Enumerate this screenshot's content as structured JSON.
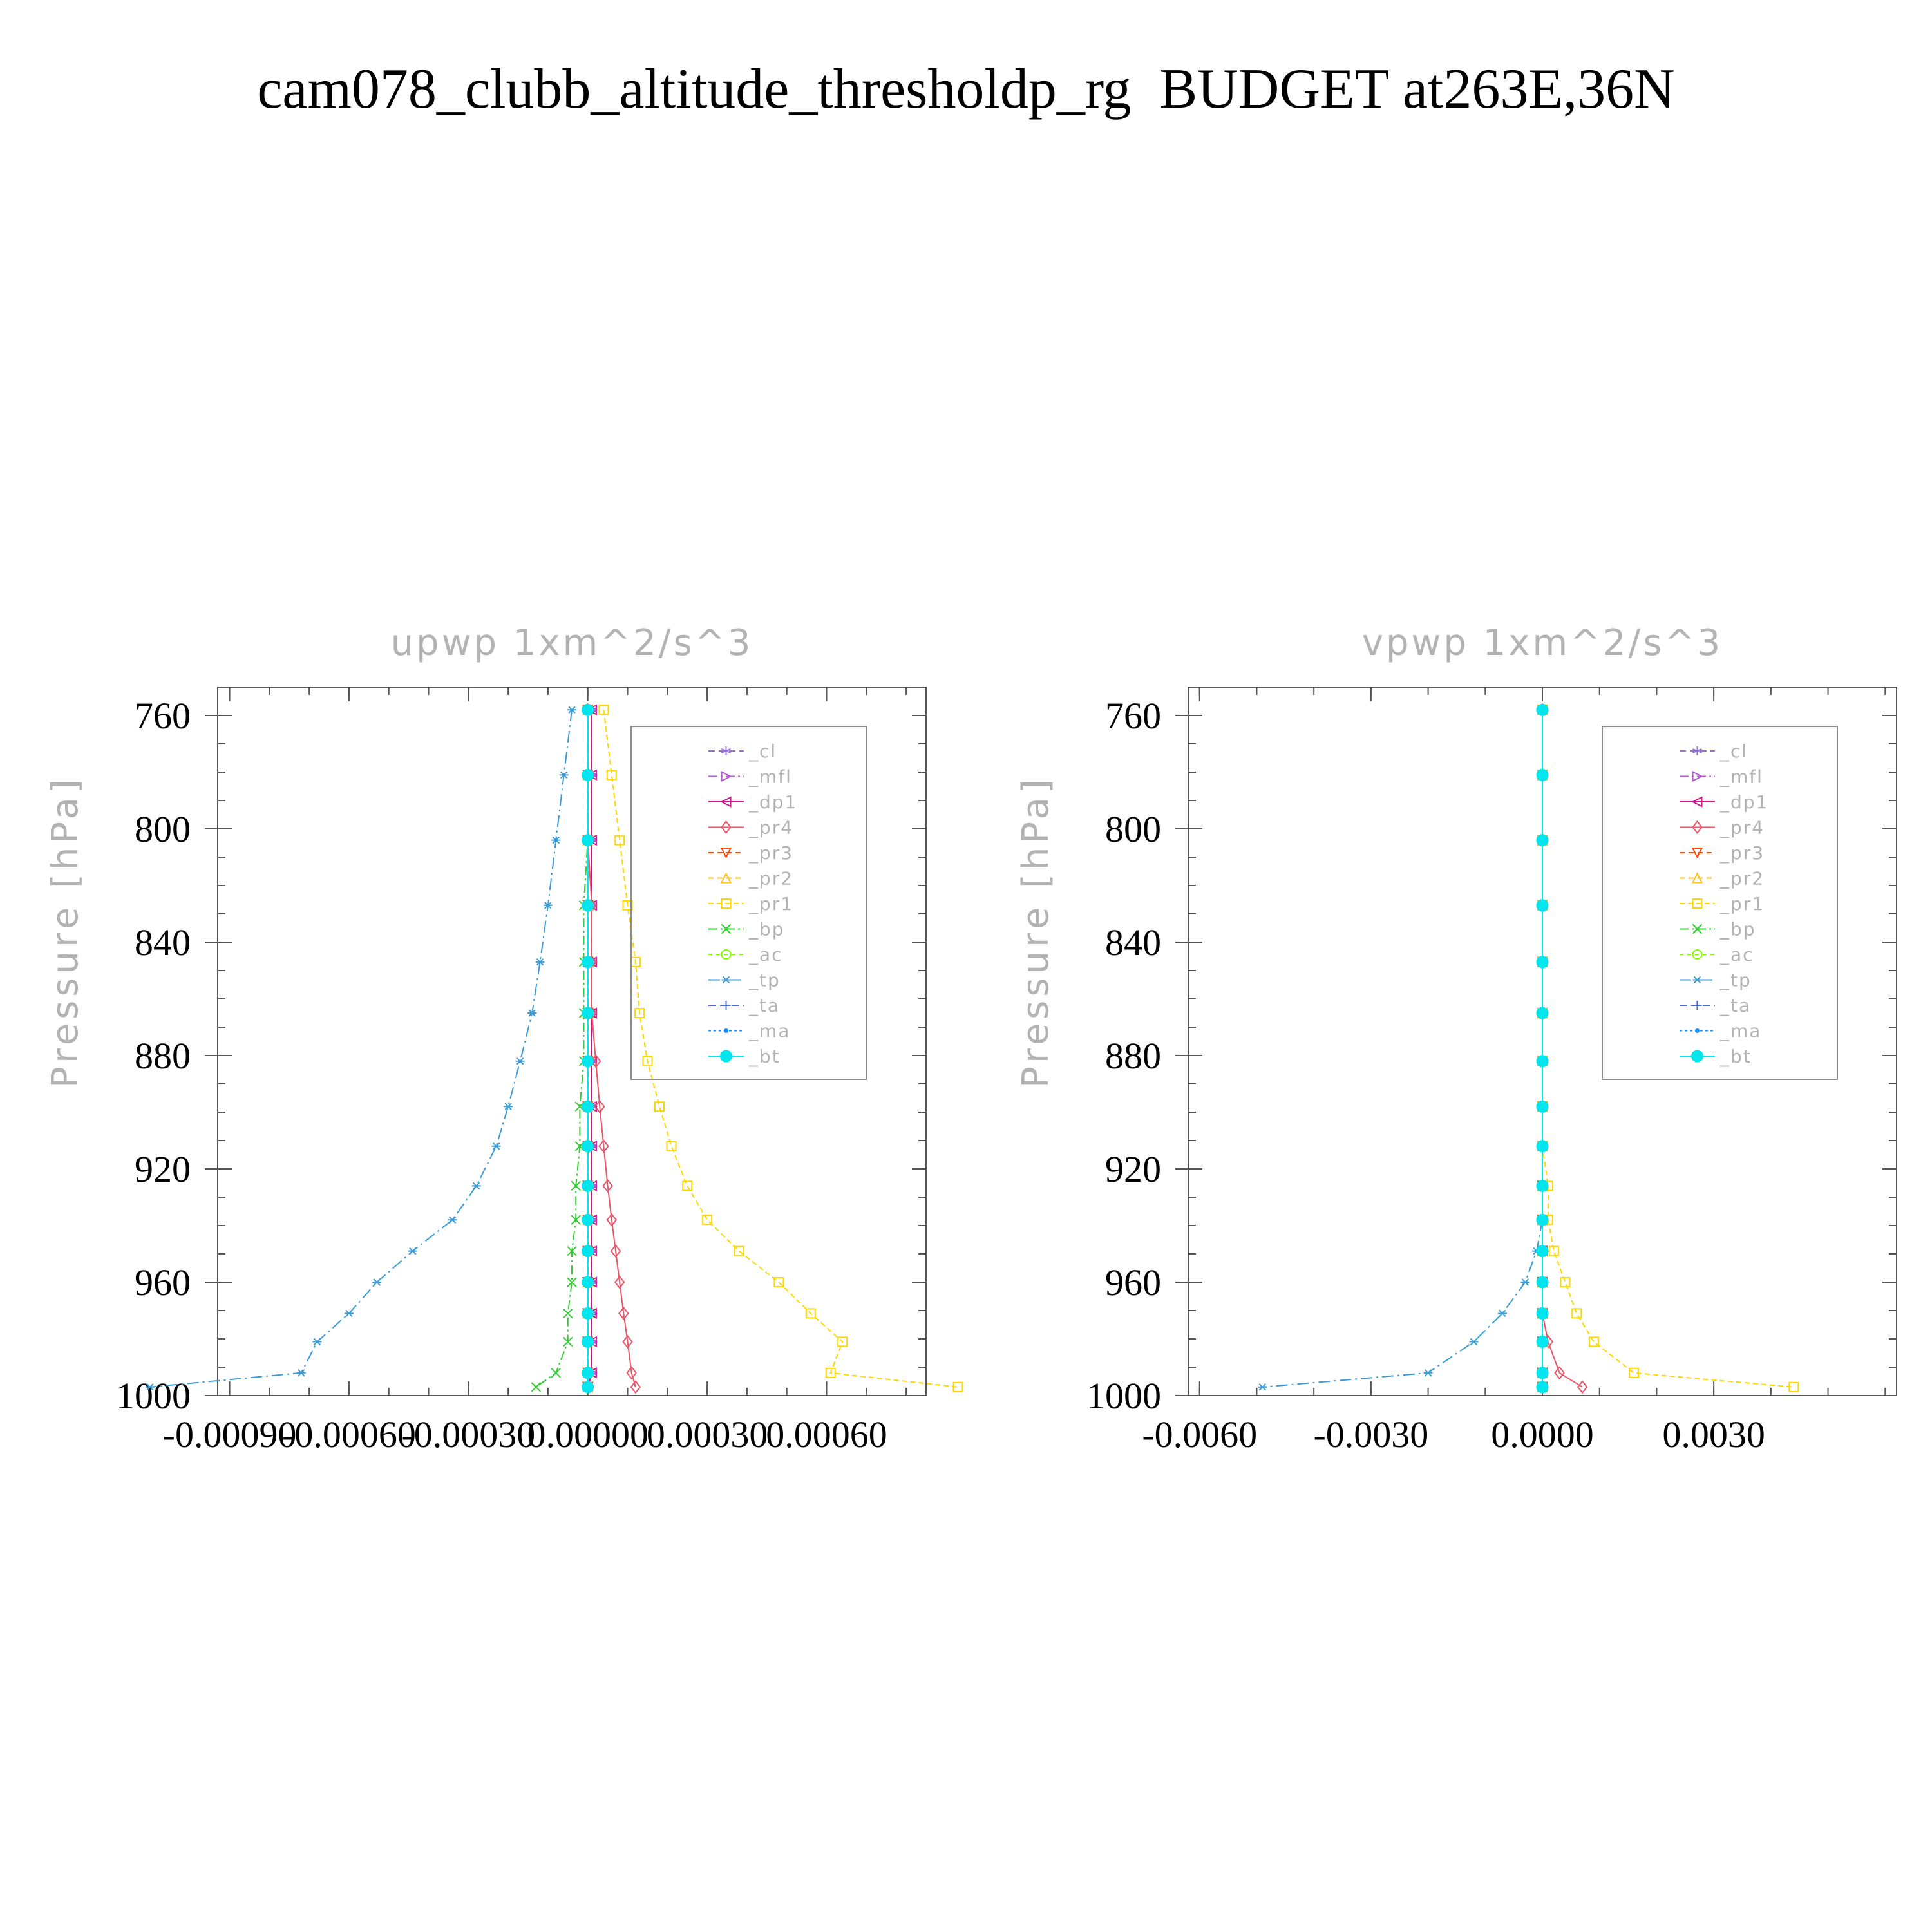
{
  "title": "cam078_clubb_altitude_thresholdp_rg  BUDGET at263E,36N",
  "colors": {
    "_cl": "#9370db",
    "_mfl": "#ba55d3",
    "_dp1": "#c71585",
    "_pr4": "#e9566a",
    "_pr3": "#ff4500",
    "_pr2": "#ffc125",
    "_pr1": "#ffd700",
    "_bp": "#32cd32",
    "_ac": "#7fff00",
    "_tp": "#3a9bd5",
    "_ta": "#4169e1",
    "_ma": "#1e90ff",
    "_bt": "#00e5ee",
    "axis": "#555555",
    "label": "#b3b3b3"
  },
  "chart_data": [
    {
      "type": "line",
      "title": "upwp    1xm^2/s^3",
      "ylabel": "Pressure  [hPa]",
      "ylim": [
        1000,
        750
      ],
      "xlim": [
        -0.00093,
        0.00085
      ],
      "xticks": [
        -0.0009,
        -0.0006,
        -0.0003,
        0.0,
        0.0003,
        0.0006
      ],
      "xtick_labels": [
        "-0.00090",
        "-0.00060",
        "-0.00030",
        "0.00000",
        "0.00030",
        "0.00060"
      ],
      "yticks": [
        760,
        800,
        840,
        880,
        920,
        960,
        1000
      ],
      "ytick_labels": [
        "760",
        "800",
        "840",
        "880",
        "920",
        "960",
        "1000"
      ],
      "legend_position": "top-right",
      "y": [
        758,
        781,
        804,
        827,
        847,
        865,
        882,
        898,
        912,
        926,
        938,
        949,
        960,
        971,
        981,
        992,
        997
      ],
      "series": [
        {
          "name": "_cl",
          "marker": "star",
          "values": [
            1e-05,
            1e-05,
            1e-05,
            1e-05,
            1e-05,
            1e-05,
            1e-05,
            1e-05,
            1e-05,
            1e-05,
            1e-05,
            1e-05,
            1e-05,
            1e-05,
            1e-05,
            1e-05,
            0.0
          ]
        },
        {
          "name": "_mfl",
          "marker": "triangle-right",
          "values": [
            1e-05,
            1e-05,
            1e-05,
            1e-05,
            1e-05,
            1e-05,
            1e-05,
            1e-05,
            1e-05,
            1e-05,
            1e-05,
            1e-05,
            1e-05,
            1e-05,
            1e-05,
            1e-05,
            0.0
          ]
        },
        {
          "name": "_dp1",
          "marker": "triangle-left",
          "values": [
            1e-05,
            1e-05,
            1e-05,
            1e-05,
            1e-05,
            1e-05,
            1e-05,
            1e-05,
            1e-05,
            1e-05,
            1e-05,
            1e-05,
            1e-05,
            1e-05,
            1e-05,
            1e-05,
            0.0
          ]
        },
        {
          "name": "_pr4",
          "marker": "diamond",
          "values": [
            0.0,
            0.0,
            0.0,
            1e-05,
            1e-05,
            1e-05,
            2e-05,
            3e-05,
            4e-05,
            5e-05,
            6e-05,
            7e-05,
            8e-05,
            9e-05,
            0.0001,
            0.00011,
            0.00012
          ]
        },
        {
          "name": "_pr3",
          "marker": "triangle-down",
          "values": [
            0.0,
            0.0,
            0.0,
            0.0,
            0.0,
            0.0,
            0.0,
            0.0,
            0.0,
            0.0,
            0.0,
            0.0,
            0.0,
            0.0,
            0.0,
            0.0,
            0.0
          ]
        },
        {
          "name": "_pr2",
          "marker": "triangle-up",
          "values": [
            0.0,
            0.0,
            0.0,
            0.0,
            0.0,
            0.0,
            0.0,
            0.0,
            0.0,
            0.0,
            0.0,
            0.0,
            0.0,
            0.0,
            0.0,
            0.0,
            0.0
          ]
        },
        {
          "name": "_pr1",
          "marker": "square",
          "values": [
            4e-05,
            6e-05,
            8e-05,
            0.0001,
            0.00012,
            0.00013,
            0.00015,
            0.00018,
            0.00021,
            0.00025,
            0.0003,
            0.00038,
            0.00048,
            0.00056,
            0.00064,
            0.00061,
            0.00093
          ]
        },
        {
          "name": "_bp",
          "marker": "x",
          "values": [
            0.0,
            0.0,
            0.0,
            -1e-05,
            -1e-05,
            -1e-05,
            -1e-05,
            -2e-05,
            -2e-05,
            -3e-05,
            -3e-05,
            -4e-05,
            -4e-05,
            -5e-05,
            -5e-05,
            -8e-05,
            -0.00013
          ]
        },
        {
          "name": "_ac",
          "marker": "circle",
          "values": [
            0.0,
            0.0,
            0.0,
            0.0,
            0.0,
            0.0,
            0.0,
            0.0,
            0.0,
            0.0,
            0.0,
            0.0,
            0.0,
            0.0,
            0.0,
            0.0,
            0.0
          ]
        },
        {
          "name": "_tp",
          "marker": "asterisk",
          "values": [
            -4e-05,
            -6e-05,
            -8e-05,
            -0.0001,
            -0.00012,
            -0.00014,
            -0.00017,
            -0.0002,
            -0.00023,
            -0.00028,
            -0.00034,
            -0.00044,
            -0.00053,
            -0.0006,
            -0.00068,
            -0.00072,
            -0.0011
          ]
        },
        {
          "name": "_ta",
          "marker": "plus",
          "values": [
            0.0,
            0.0,
            0.0,
            0.0,
            0.0,
            0.0,
            0.0,
            0.0,
            0.0,
            0.0,
            0.0,
            0.0,
            0.0,
            0.0,
            0.0,
            0.0,
            0.0
          ]
        },
        {
          "name": "_ma",
          "marker": "dot",
          "values": [
            0.0,
            0.0,
            0.0,
            0.0,
            0.0,
            0.0,
            0.0,
            0.0,
            0.0,
            0.0,
            0.0,
            0.0,
            0.0,
            0.0,
            0.0,
            0.0,
            0.0
          ]
        },
        {
          "name": "_bt",
          "marker": "filled-circle",
          "values": [
            0.0,
            0.0,
            0.0,
            0.0,
            0.0,
            0.0,
            0.0,
            0.0,
            0.0,
            0.0,
            0.0,
            0.0,
            0.0,
            0.0,
            0.0,
            0.0,
            0.0
          ]
        }
      ]
    },
    {
      "type": "line",
      "title": "vpwp    1xm^2/s^3",
      "ylabel": "Pressure  [hPa]",
      "ylim": [
        1000,
        750
      ],
      "xlim": [
        -0.0062,
        0.0062
      ],
      "xticks": [
        -0.006,
        -0.003,
        0.0,
        0.003
      ],
      "xtick_labels": [
        "-0.0060",
        "-0.0030",
        "0.0000",
        "0.0030"
      ],
      "yticks": [
        760,
        800,
        840,
        880,
        920,
        960,
        1000
      ],
      "ytick_labels": [
        "760",
        "800",
        "840",
        "880",
        "920",
        "960",
        "1000"
      ],
      "legend_position": "top-right",
      "y": [
        758,
        781,
        804,
        827,
        847,
        865,
        882,
        898,
        912,
        926,
        938,
        949,
        960,
        971,
        981,
        992,
        997
      ],
      "series": [
        {
          "name": "_cl",
          "marker": "star",
          "values": [
            0.0,
            0.0,
            0.0,
            0.0,
            0.0,
            0.0,
            0.0,
            0.0,
            0.0,
            0.0,
            0.0,
            0.0,
            0.0,
            0.0,
            0.0,
            0.0,
            0.0
          ]
        },
        {
          "name": "_mfl",
          "marker": "triangle-right",
          "values": [
            0.0,
            0.0,
            0.0,
            0.0,
            0.0,
            0.0,
            0.0,
            0.0,
            0.0,
            0.0,
            0.0,
            0.0,
            0.0,
            0.0,
            0.0,
            0.0,
            0.0
          ]
        },
        {
          "name": "_dp1",
          "marker": "triangle-left",
          "values": [
            0.0,
            0.0,
            0.0,
            0.0,
            0.0,
            0.0,
            0.0,
            0.0,
            0.0,
            0.0,
            0.0,
            0.0,
            0.0,
            0.0,
            0.0,
            0.0,
            0.0
          ]
        },
        {
          "name": "_pr4",
          "marker": "diamond",
          "values": [
            0.0,
            0.0,
            0.0,
            0.0,
            0.0,
            0.0,
            0.0,
            0.0,
            0.0,
            0.0,
            0.0,
            0.0,
            0.0,
            0.0,
            0.0001,
            0.0003,
            0.0007
          ]
        },
        {
          "name": "_pr3",
          "marker": "triangle-down",
          "values": [
            0.0,
            0.0,
            0.0,
            0.0,
            0.0,
            0.0,
            0.0,
            0.0,
            0.0,
            0.0,
            0.0,
            0.0,
            0.0,
            0.0,
            0.0,
            0.0,
            0.0
          ]
        },
        {
          "name": "_pr2",
          "marker": "triangle-up",
          "values": [
            0.0,
            0.0,
            0.0,
            0.0,
            0.0,
            0.0,
            0.0,
            0.0,
            0.0,
            0.0,
            0.0,
            0.0,
            0.0,
            0.0,
            0.0,
            0.0,
            0.0
          ]
        },
        {
          "name": "_pr1",
          "marker": "square",
          "values": [
            0.0,
            0.0,
            0.0,
            0.0,
            0.0,
            0.0,
            0.0,
            0.0,
            0.0,
            0.0001,
            0.0001,
            0.0002,
            0.0004,
            0.0006,
            0.0009,
            0.0016,
            0.0044
          ]
        },
        {
          "name": "_bp",
          "marker": "x",
          "values": [
            0.0,
            0.0,
            0.0,
            0.0,
            0.0,
            0.0,
            0.0,
            0.0,
            0.0,
            0.0,
            0.0,
            0.0,
            0.0,
            0.0,
            0.0,
            0.0,
            0.0
          ]
        },
        {
          "name": "_ac",
          "marker": "circle",
          "values": [
            0.0,
            0.0,
            0.0,
            0.0,
            0.0,
            0.0,
            0.0,
            0.0,
            0.0,
            0.0,
            0.0,
            0.0,
            0.0,
            0.0,
            0.0,
            0.0,
            0.0
          ]
        },
        {
          "name": "_tp",
          "marker": "asterisk",
          "values": [
            0.0,
            0.0,
            0.0,
            0.0,
            0.0,
            0.0,
            0.0,
            0.0,
            0.0,
            0.0,
            0.0,
            -0.0001,
            -0.0003,
            -0.0007,
            -0.0012,
            -0.002,
            -0.0049
          ]
        },
        {
          "name": "_ta",
          "marker": "plus",
          "values": [
            0.0,
            0.0,
            0.0,
            0.0,
            0.0,
            0.0,
            0.0,
            0.0,
            0.0,
            0.0,
            0.0,
            0.0,
            0.0,
            0.0,
            0.0,
            0.0,
            0.0
          ]
        },
        {
          "name": "_ma",
          "marker": "dot",
          "values": [
            0.0,
            0.0,
            0.0,
            0.0,
            0.0,
            0.0,
            0.0,
            0.0,
            0.0,
            0.0,
            0.0,
            0.0,
            0.0,
            0.0,
            0.0,
            0.0,
            0.0
          ]
        },
        {
          "name": "_bt",
          "marker": "filled-circle",
          "values": [
            0.0,
            0.0,
            0.0,
            0.0,
            0.0,
            0.0,
            0.0,
            0.0,
            0.0,
            0.0,
            0.0,
            0.0,
            0.0,
            0.0,
            0.0,
            0.0,
            0.0
          ]
        }
      ]
    }
  ]
}
